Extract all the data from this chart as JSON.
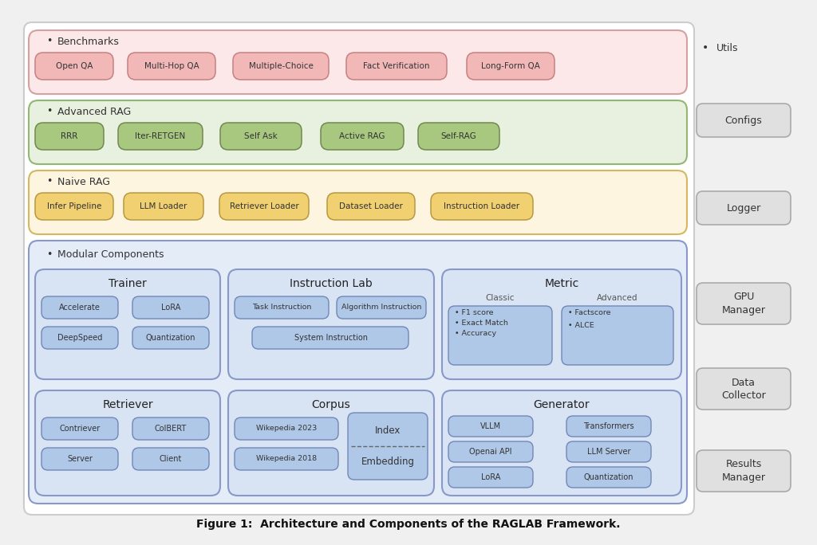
{
  "figure_caption": "Figure 1:  Architecture and Components of the RAGLAB Framework.",
  "bg_color": "#f0f0f0",
  "benchmarks": {
    "label": "Benchmarks",
    "bg": "#fce8e8",
    "border": "#d4a0a0",
    "items": [
      "Open QA",
      "Multi-Hop QA",
      "Multiple-Choice",
      "Fact Verification",
      "Long-Form QA"
    ],
    "item_bg": "#f2b8b8",
    "item_border": "#c88080"
  },
  "advanced_rag": {
    "label": "Advanced RAG",
    "bg": "#e8f0e0",
    "border": "#90b870",
    "items": [
      "RRR",
      "Iter-RETGEN",
      "Self Ask",
      "Active RAG",
      "Self-RAG"
    ],
    "item_bg": "#a8c880",
    "item_border": "#708850"
  },
  "naive_rag": {
    "label": "Naive RAG",
    "bg": "#fdf5e0",
    "border": "#d4b860",
    "items": [
      "Infer Pipeline",
      "LLM Loader",
      "Retriever Loader",
      "Dataset Loader",
      "Instruction Loader"
    ],
    "item_bg": "#f0d070",
    "item_border": "#b89840"
  },
  "modular": {
    "label": "Modular Components",
    "bg": "#e4ecf8",
    "border": "#8898c8"
  },
  "utils_bg": "#e0e0e0",
  "utils_border": "#aaaaaa",
  "trainer": {
    "title": "Trainer",
    "bg": "#d8e4f4",
    "border": "#8898c8",
    "items": [
      [
        "Accelerate",
        "LoRA"
      ],
      [
        "DeepSpeed",
        "Quantization"
      ]
    ],
    "item_bg": "#b0c8e8",
    "item_border": "#7088b8"
  },
  "instruction_lab": {
    "title": "Instruction Lab",
    "bg": "#d8e4f4",
    "border": "#8898c8",
    "items_row1": [
      "Task Instruction",
      "Algorithm Instruction"
    ],
    "items_row2": [
      "System Instruction"
    ],
    "item_bg": "#b0c8e8",
    "item_border": "#7088b8"
  },
  "metric": {
    "title": "Metric",
    "bg": "#d8e4f4",
    "border": "#8898c8",
    "classic_label": "Classic",
    "classic_items": [
      "F1 score",
      "Exact Match",
      "Accuracy"
    ],
    "advanced_label": "Advanced",
    "advanced_items": [
      "Factscore",
      "ALCE"
    ],
    "item_bg": "#b0c8e8",
    "item_border": "#7088b8"
  },
  "retriever": {
    "title": "Retriever",
    "bg": "#d8e4f4",
    "border": "#8898c8",
    "items": [
      [
        "Contriever",
        "ColBERT"
      ],
      [
        "Server",
        "Client"
      ]
    ],
    "item_bg": "#b0c8e8",
    "item_border": "#7088b8"
  },
  "corpus": {
    "title": "Corpus",
    "bg": "#d8e4f4",
    "border": "#8898c8",
    "wiki_items": [
      "Wikepedia 2023",
      "Wikepedia 2018"
    ],
    "index_label": "Index",
    "embedding_label": "Embedding",
    "item_bg": "#b0c8e8",
    "item_border": "#7088b8"
  },
  "generator": {
    "title": "Generator",
    "bg": "#d8e4f4",
    "border": "#8898c8",
    "items": [
      [
        "VLLM",
        "Transformers"
      ],
      [
        "Openai API",
        "LLM Server"
      ],
      [
        "LoRA",
        "Quantization"
      ]
    ],
    "item_bg": "#b0c8e8",
    "item_border": "#7088b8"
  }
}
